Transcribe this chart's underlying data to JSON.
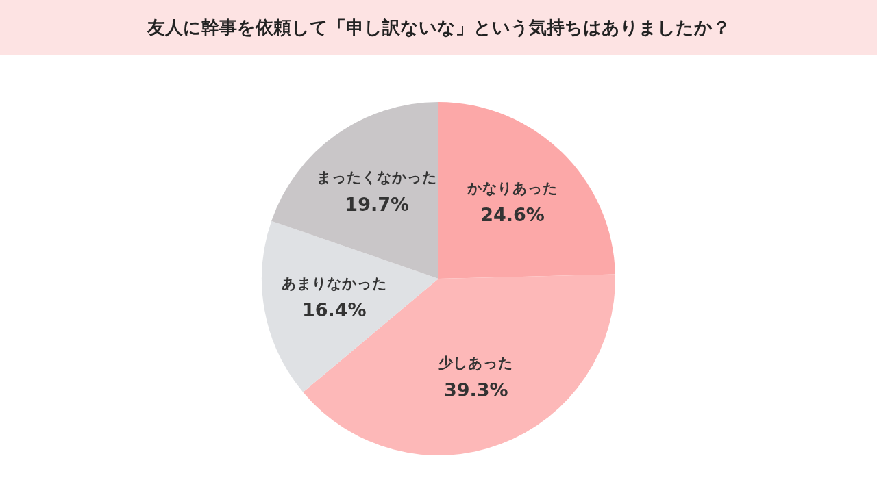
{
  "chart_data": {
    "type": "pie",
    "title": "友人に幹事を依頼して「申し訳ないな」という気持ちはありましたか？",
    "categories": [
      "かなりあった",
      "少しあった",
      "あまりなかった",
      "まったくなかった"
    ],
    "values": [
      24.6,
      39.3,
      16.4,
      19.7
    ],
    "colors": [
      "#fca8a8",
      "#fdb8b8",
      "#dfe1e4",
      "#c9c6c8"
    ],
    "value_labels": [
      "24.6%",
      "39.3%",
      "16.4%",
      "19.7%"
    ],
    "legend": false
  }
}
